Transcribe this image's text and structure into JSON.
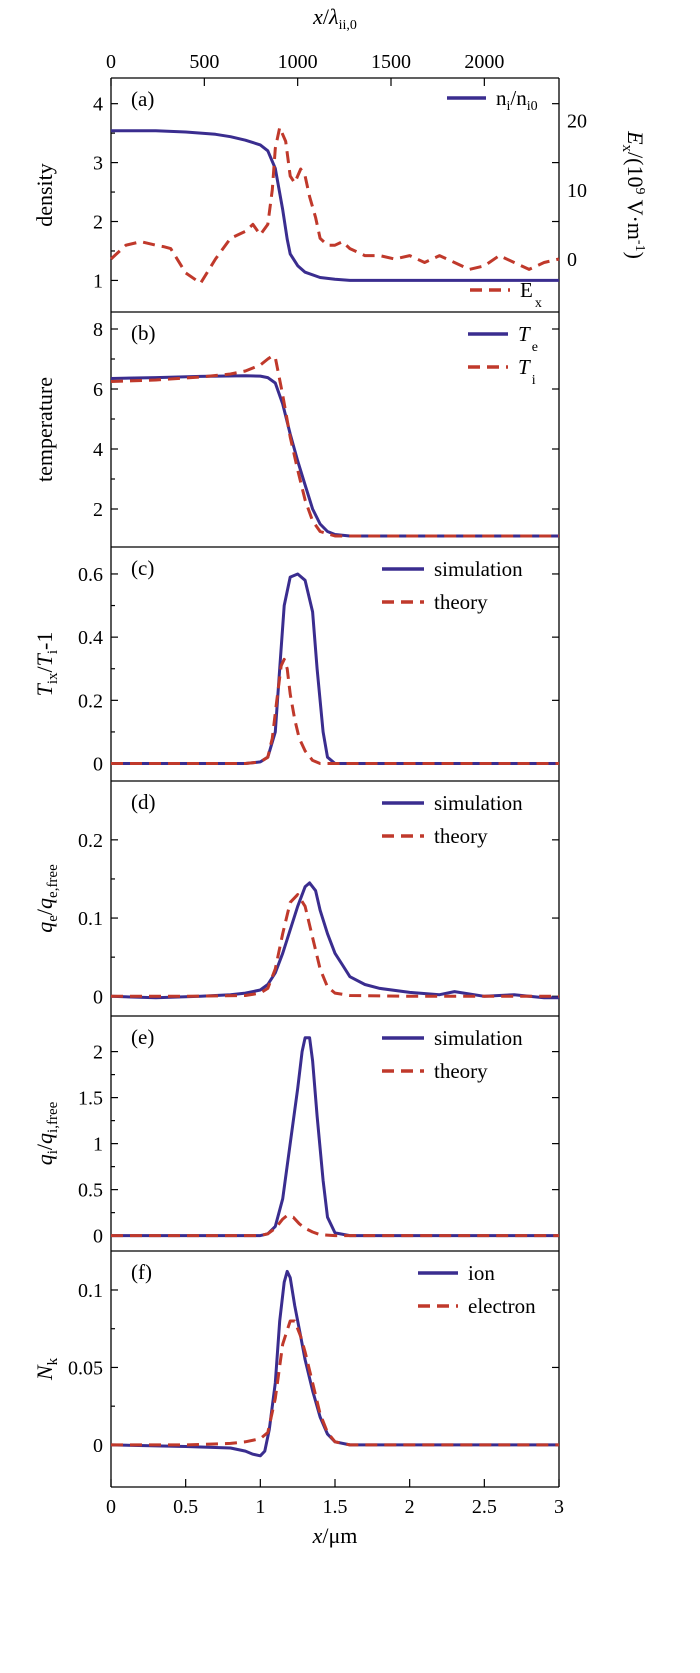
{
  "figure": {
    "top_axis": {
      "label_main": "x/λ",
      "label_sub": "ii,0",
      "ticks": [
        "0",
        "500",
        "1000",
        "1500",
        "2000"
      ],
      "tick_values": [
        0,
        500,
        1000,
        1500,
        2000
      ],
      "range": [
        0,
        2400
      ]
    },
    "bottom_axis": {
      "label": "x/μm",
      "ticks": [
        "0",
        "0.5",
        "1",
        "1.5",
        "2",
        "2.5",
        "3"
      ],
      "tick_values": [
        0,
        0.5,
        1,
        1.5,
        2,
        2.5,
        3
      ],
      "range": [
        0,
        3
      ]
    }
  },
  "colors": {
    "blue": "#3a2d8f",
    "red": "#c0392b"
  },
  "chart_data": [
    {
      "id": "a",
      "type": "line",
      "panel_label": "(a)",
      "ylabel": "density",
      "ylim": [
        0.6,
        4.3
      ],
      "yticks": [
        1,
        2,
        3,
        4
      ],
      "ytick_labels": [
        "1",
        "2",
        "3",
        "4"
      ],
      "right_axis": {
        "label": "E_x/(10^9 V·m^-1)",
        "label_parts": {
          "E": "E",
          "x_sub": "x",
          "mid": "/(10",
          "exp": "9",
          "unit": " V·m",
          "neg": "-1",
          "close": ")"
        },
        "ylim": [
          -6.5,
          25
        ],
        "ticks": [
          0,
          10,
          20
        ],
        "tick_labels": [
          "0",
          "10",
          "20"
        ]
      },
      "legend_placement": "top-right / bottom-right",
      "series": [
        {
          "name": "n_i/n_i0",
          "label_parts": [
            "n",
            "i",
            "/n",
            "i0"
          ],
          "color": "#3a2d8f",
          "style": "solid",
          "axis": "left",
          "x": [
            0,
            0.3,
            0.5,
            0.7,
            0.8,
            0.9,
            1.0,
            1.05,
            1.1,
            1.15,
            1.18,
            1.2,
            1.25,
            1.3,
            1.4,
            1.5,
            1.6,
            2.0,
            2.5,
            3.0
          ],
          "y": [
            3.54,
            3.54,
            3.52,
            3.48,
            3.44,
            3.38,
            3.3,
            3.2,
            2.9,
            2.2,
            1.7,
            1.45,
            1.25,
            1.14,
            1.05,
            1.02,
            1.0,
            1.0,
            1.0,
            1.0
          ]
        },
        {
          "name": "E_x",
          "label_parts": [
            "E",
            "x"
          ],
          "color": "#c0392b",
          "style": "dashed",
          "axis": "right",
          "x": [
            0,
            0.1,
            0.2,
            0.3,
            0.35,
            0.4,
            0.5,
            0.6,
            0.7,
            0.8,
            0.9,
            0.95,
            1.0,
            1.05,
            1.08,
            1.1,
            1.13,
            1.17,
            1.2,
            1.23,
            1.27,
            1.3,
            1.33,
            1.37,
            1.4,
            1.45,
            1.5,
            1.55,
            1.6,
            1.7,
            1.8,
            1.9,
            2.0,
            2.1,
            2.2,
            2.3,
            2.4,
            2.5,
            2.6,
            2.7,
            2.8,
            2.9,
            3.0
          ],
          "y": [
            0,
            2,
            2.5,
            2,
            1.8,
            1.5,
            -2,
            -3.5,
            0,
            3,
            4,
            5,
            3.5,
            5,
            10,
            16,
            19,
            17,
            12,
            11,
            13,
            12,
            9,
            6,
            3,
            2,
            2,
            2.5,
            1.5,
            0.5,
            0.5,
            0,
            0.5,
            -0.5,
            0.5,
            -0.5,
            -1.5,
            -1,
            0.5,
            -0.5,
            -1.5,
            -0.5,
            0
          ]
        }
      ]
    },
    {
      "id": "b",
      "type": "line",
      "panel_label": "(b)",
      "ylabel": "temperature",
      "ylim": [
        1,
        8.3
      ],
      "yticks": [
        2,
        4,
        6,
        8
      ],
      "ytick_labels": [
        "2",
        "4",
        "6",
        "8"
      ],
      "legend_placement": "top-right",
      "series": [
        {
          "name": "T_e",
          "label_parts": [
            "T",
            "e"
          ],
          "color": "#3a2d8f",
          "style": "solid",
          "x": [
            0,
            0.3,
            0.6,
            0.9,
            1.0,
            1.05,
            1.1,
            1.15,
            1.2,
            1.25,
            1.3,
            1.35,
            1.4,
            1.45,
            1.5,
            1.6,
            1.8,
            2.0,
            2.5,
            3.0
          ],
          "y": [
            6.35,
            6.38,
            6.42,
            6.44,
            6.43,
            6.38,
            6.2,
            5.5,
            4.5,
            3.6,
            2.8,
            2.0,
            1.5,
            1.25,
            1.15,
            1.1,
            1.1,
            1.1,
            1.1,
            1.1
          ]
        },
        {
          "name": "T_i",
          "label_parts": [
            "T",
            "i"
          ],
          "color": "#c0392b",
          "style": "dashed",
          "x": [
            0,
            0.3,
            0.6,
            0.8,
            0.9,
            1.0,
            1.05,
            1.08,
            1.1,
            1.15,
            1.2,
            1.25,
            1.3,
            1.35,
            1.4,
            1.5,
            1.6,
            2.0,
            2.5,
            3.0
          ],
          "y": [
            6.25,
            6.3,
            6.4,
            6.5,
            6.6,
            6.8,
            7.0,
            7.1,
            7.05,
            5.8,
            4.4,
            3.3,
            2.3,
            1.6,
            1.25,
            1.1,
            1.1,
            1.1,
            1.1,
            1.1
          ]
        }
      ]
    },
    {
      "id": "c",
      "type": "line",
      "panel_label": "(c)",
      "ylabel": "T_ix/T_i-1",
      "ylabel_parts": [
        "T",
        "ix",
        "/",
        "T",
        "i",
        "-1"
      ],
      "ylim": [
        -0.03,
        0.66
      ],
      "yticks": [
        0,
        0.2,
        0.4,
        0.6
      ],
      "ytick_labels": [
        "0",
        "0.2",
        "0.4",
        "0.6"
      ],
      "legend_placement": "top-right",
      "series": [
        {
          "name": "simulation",
          "color": "#3a2d8f",
          "style": "solid",
          "x": [
            0,
            0.5,
            0.9,
            1.0,
            1.05,
            1.1,
            1.13,
            1.16,
            1.2,
            1.25,
            1.3,
            1.35,
            1.38,
            1.42,
            1.45,
            1.5,
            1.6,
            2.0,
            2.5,
            3.0
          ],
          "y": [
            0,
            0,
            0,
            0.005,
            0.02,
            0.1,
            0.3,
            0.5,
            0.59,
            0.6,
            0.58,
            0.48,
            0.3,
            0.1,
            0.02,
            0,
            0,
            0,
            0,
            0
          ]
        },
        {
          "name": "theory",
          "color": "#c0392b",
          "style": "dashed",
          "x": [
            0,
            0.5,
            0.9,
            1.0,
            1.05,
            1.08,
            1.11,
            1.14,
            1.16,
            1.18,
            1.2,
            1.23,
            1.26,
            1.3,
            1.35,
            1.4,
            1.5,
            2.0,
            2.5,
            3.0
          ],
          "y": [
            0,
            0,
            0,
            0.005,
            0.02,
            0.08,
            0.2,
            0.31,
            0.33,
            0.3,
            0.22,
            0.14,
            0.08,
            0.04,
            0.01,
            0,
            0,
            0,
            0,
            0
          ]
        }
      ]
    },
    {
      "id": "d",
      "type": "line",
      "panel_label": "(d)",
      "ylabel": "q_e/q_e,free",
      "ylabel_parts": [
        "q",
        "e",
        "/",
        "q",
        "e,free"
      ],
      "ylim": [
        -0.015,
        0.265
      ],
      "yticks": [
        0,
        0.1,
        0.2
      ],
      "ytick_labels": [
        "0",
        "0.1",
        "0.2"
      ],
      "legend_placement": "top-right",
      "series": [
        {
          "name": "simulation",
          "color": "#3a2d8f",
          "style": "solid",
          "x": [
            0,
            0.3,
            0.6,
            0.8,
            0.9,
            1.0,
            1.05,
            1.1,
            1.15,
            1.2,
            1.25,
            1.3,
            1.33,
            1.37,
            1.4,
            1.45,
            1.5,
            1.55,
            1.6,
            1.7,
            1.8,
            2.0,
            2.2,
            2.3,
            2.5,
            2.7,
            2.9,
            3.0
          ],
          "y": [
            0,
            -0.002,
            0,
            0.002,
            0.004,
            0.008,
            0.015,
            0.03,
            0.055,
            0.085,
            0.115,
            0.14,
            0.145,
            0.135,
            0.11,
            0.08,
            0.055,
            0.04,
            0.025,
            0.015,
            0.01,
            0.005,
            0.002,
            0.006,
            0,
            0.002,
            -0.002,
            -0.002
          ]
        },
        {
          "name": "theory",
          "color": "#c0392b",
          "style": "dashed",
          "x": [
            0,
            0.5,
            0.9,
            1.0,
            1.05,
            1.1,
            1.15,
            1.2,
            1.25,
            1.3,
            1.35,
            1.4,
            1.45,
            1.5,
            1.6,
            2.0,
            2.5,
            3.0
          ],
          "y": [
            0,
            0,
            0.001,
            0.004,
            0.01,
            0.035,
            0.08,
            0.12,
            0.13,
            0.115,
            0.075,
            0.035,
            0.012,
            0.004,
            0.001,
            0,
            0,
            0
          ]
        }
      ]
    },
    {
      "id": "e",
      "type": "line",
      "panel_label": "(e)",
      "ylabel": "q_i/q_i,free",
      "ylabel_parts": [
        "q",
        "i",
        "/",
        "q",
        "i,free"
      ],
      "ylim": [
        -0.08,
        2.3
      ],
      "yticks": [
        0,
        0.5,
        1,
        1.5,
        2
      ],
      "ytick_labels": [
        "0",
        "0.5",
        "1",
        "1.5",
        "2"
      ],
      "legend_placement": "top-right",
      "series": [
        {
          "name": "simulation",
          "color": "#3a2d8f",
          "style": "solid",
          "x": [
            0,
            0.5,
            1.0,
            1.05,
            1.1,
            1.15,
            1.2,
            1.25,
            1.28,
            1.3,
            1.33,
            1.35,
            1.38,
            1.42,
            1.45,
            1.5,
            1.6,
            2.0,
            2.5,
            3.0
          ],
          "y": [
            0,
            0,
            0,
            0.02,
            0.1,
            0.4,
            1.0,
            1.6,
            2.0,
            2.15,
            2.15,
            1.9,
            1.3,
            0.6,
            0.2,
            0.03,
            0,
            0,
            0,
            0
          ]
        },
        {
          "name": "theory",
          "color": "#c0392b",
          "style": "dashed",
          "x": [
            0,
            0.5,
            1.0,
            1.05,
            1.1,
            1.15,
            1.18,
            1.22,
            1.26,
            1.3,
            1.35,
            1.4,
            1.5,
            2.0,
            2.5,
            3.0
          ],
          "y": [
            0,
            0,
            0,
            0.02,
            0.08,
            0.18,
            0.22,
            0.2,
            0.13,
            0.08,
            0.04,
            0.01,
            0,
            0,
            0,
            0
          ]
        }
      ]
    },
    {
      "id": "f",
      "type": "line",
      "panel_label": "(f)",
      "ylabel": "N_k",
      "ylabel_parts": [
        "N",
        "k"
      ],
      "ylim": [
        -0.022,
        0.12
      ],
      "yticks": [
        0,
        0.05,
        0.1
      ],
      "ytick_labels": [
        "0",
        "0.05",
        "0.1"
      ],
      "legend_placement": "top-right",
      "series": [
        {
          "name": "ion",
          "color": "#3a2d8f",
          "style": "solid",
          "x": [
            0,
            0.5,
            0.8,
            0.9,
            0.95,
            1.0,
            1.03,
            1.06,
            1.1,
            1.13,
            1.16,
            1.18,
            1.2,
            1.23,
            1.27,
            1.3,
            1.35,
            1.4,
            1.45,
            1.5,
            1.6,
            2.0,
            2.5,
            3.0
          ],
          "y": [
            0,
            -0.001,
            -0.002,
            -0.004,
            -0.006,
            -0.007,
            -0.004,
            0.01,
            0.04,
            0.08,
            0.105,
            0.112,
            0.108,
            0.09,
            0.07,
            0.055,
            0.035,
            0.018,
            0.007,
            0.002,
            0,
            0,
            0,
            0
          ]
        },
        {
          "name": "electron",
          "color": "#c0392b",
          "style": "dashed",
          "x": [
            0,
            0.5,
            0.8,
            0.9,
            1.0,
            1.05,
            1.1,
            1.15,
            1.2,
            1.23,
            1.27,
            1.3,
            1.35,
            1.4,
            1.45,
            1.5,
            1.6,
            2.0,
            2.5,
            3.0
          ],
          "y": [
            0,
            0,
            0.001,
            0.002,
            0.004,
            0.008,
            0.03,
            0.065,
            0.08,
            0.08,
            0.07,
            0.06,
            0.04,
            0.02,
            0.008,
            0.002,
            0,
            0,
            0,
            0
          ]
        }
      ]
    }
  ]
}
